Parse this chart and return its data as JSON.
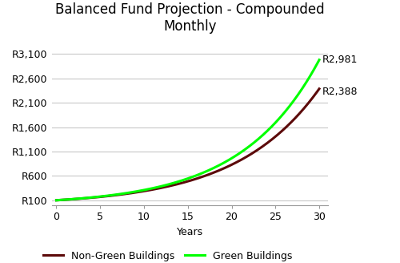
{
  "title": "Balanced Fund Projection - Compounded\nMonthly",
  "xlabel": "Years",
  "x_ticks": [
    0,
    5,
    10,
    15,
    20,
    25,
    30
  ],
  "ytick_labels": [
    "R100",
    "R600",
    "R1,100",
    "R1,600",
    "R2,100",
    "R2,600",
    "R3,100"
  ],
  "ytick_values": [
    100,
    600,
    1100,
    1600,
    2100,
    2600,
    3100
  ],
  "ylim": [
    0,
    3400
  ],
  "xlim": [
    -0.5,
    31
  ],
  "green_label": "Green Buildings",
  "dark_red_label": "Non-Green Buildings",
  "green_color": "#00FF00",
  "dark_red_color": "#5C0A0A",
  "green_final_value": 2981,
  "dark_red_final_value": 2388,
  "green_final_label": "R2,981",
  "dark_red_final_label": "R2,388",
  "initial_value": 100,
  "years": 30,
  "background_color": "#FFFFFF",
  "grid_color": "#C8C8C8",
  "title_fontsize": 12,
  "legend_fontsize": 9,
  "axis_label_fontsize": 9,
  "tick_fontsize": 9,
  "line_width": 2.2
}
